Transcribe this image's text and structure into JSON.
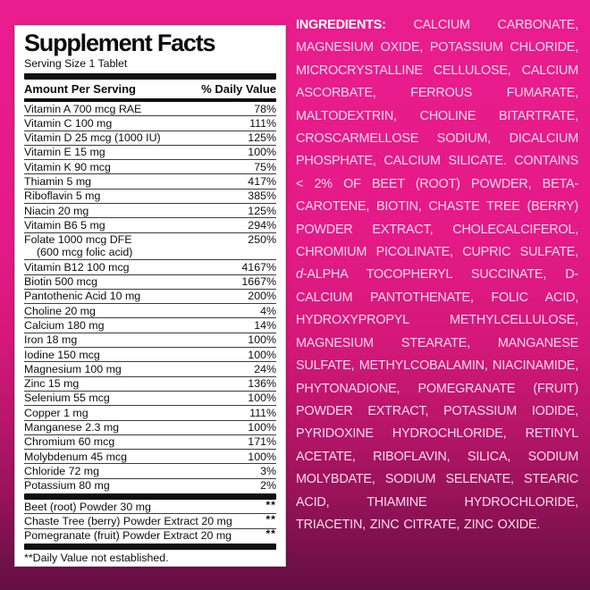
{
  "background": {
    "gradient_top": "#ea1d8e",
    "gradient_bottom": "#660f45"
  },
  "panel": {
    "title": "Supplement Facts",
    "serving_size": "Serving Size 1 Tablet",
    "header": {
      "amount": "Amount Per Serving",
      "daily_value": "% Daily Value"
    },
    "rows": [
      {
        "label": "Vitamin A 700 mcg RAE",
        "value": "78%"
      },
      {
        "label": "Vitamin C 100 mg",
        "value": "111%"
      },
      {
        "label": "Vitamin D 25 mcg (1000 IU)",
        "value": "125%"
      },
      {
        "label": "Vitamin E 15 mg",
        "value": "100%"
      },
      {
        "label": "Vitamin K 90 mcg",
        "value": "75%"
      },
      {
        "label": "Thiamin 5 mg",
        "value": "417%"
      },
      {
        "label": "Riboflavin 5 mg",
        "value": "385%"
      },
      {
        "label": "Niacin 20 mg",
        "value": "125%"
      },
      {
        "label": "Vitamin B6 5 mg",
        "value": "294%"
      },
      {
        "label": "Folate 1000 mcg DFE",
        "label2": "(600 mcg folic acid)",
        "value": "250%"
      },
      {
        "label": "Vitamin B12 100 mcg",
        "value": "4167%"
      },
      {
        "label": "Biotin 500 mcg",
        "value": "1667%"
      },
      {
        "label": "Pantothenic Acid 10 mg",
        "value": "200%"
      },
      {
        "label": "Choline 20 mg",
        "value": "4%"
      },
      {
        "label": "Calcium 180 mg",
        "value": "14%"
      },
      {
        "label": "Iron 18 mg",
        "value": "100%"
      },
      {
        "label": "Iodine 150 mcg",
        "value": "100%"
      },
      {
        "label": "Magnesium 100 mg",
        "value": "24%"
      },
      {
        "label": "Zinc 15 mg",
        "value": "136%"
      },
      {
        "label": "Selenium 55 mcg",
        "value": "100%"
      },
      {
        "label": "Copper 1 mg",
        "value": "111%"
      },
      {
        "label": "Manganese 2.3 mg",
        "value": "100%"
      },
      {
        "label": "Chromium 60 mcg",
        "value": "171%"
      },
      {
        "label": "Molybdenum 45 mcg",
        "value": "100%"
      },
      {
        "label": "Chloride 72 mg",
        "value": "3%"
      },
      {
        "label": "Potassium 80 mg",
        "value": "2%"
      }
    ],
    "botanical_rows": [
      {
        "label": "Beet (root) Powder 30 mg",
        "value": "**"
      },
      {
        "label": "Chaste Tree (berry) Powder Extract 20 mg",
        "value": "**"
      },
      {
        "label": "Pomegranate (fruit) Powder Extract 20 mg",
        "value": "**"
      }
    ],
    "footnote": "**Daily Value not established."
  },
  "ingredients": {
    "segments": [
      {
        "text": "INGREDIENTS:",
        "style": "bold"
      },
      {
        "text": " CALCIUM CARBONATE, MAGNESIUM OXIDE, POTASSIUM CHLORIDE, MICROCRYSTALLINE CELLULOSE, CALCIUM ASCORBATE, FERROUS FUMARATE, MALTODEXTRIN, CHOLINE BITARTRATE, CROSCARMELLOSE SODIUM, DICALCIUM PHOSPHATE, CALCIUM SILICATE. CONTAINS < 2% OF BEET (ROOT) POWDER, BETA-CAROTENE, BIOTIN, CHASTE TREE (BERRY) POWDER EXTRACT, CHOLECALCIFEROL, CHROMIUM PICOLINATE, CUPRIC SULFATE, ",
        "style": "normal"
      },
      {
        "text": "d",
        "style": "italic"
      },
      {
        "text": "-ALPHA TOCOPHERYL SUCCINATE, D-CALCIUM PANTOTHENATE, FOLIC ACID, HYDROXYPROPYL METHYLCELLULOSE, MAGNESIUM STEARATE, MANGANESE SULFATE, METHYLCOBALAMIN, NIACINAMIDE, PHYTONADIONE, POMEGRANATE (FRUIT) POWDER EXTRACT, POTASSIUM IODIDE, PYRIDOXINE HYDROCHLORIDE, RETINYL ACETATE, RIBOFLAVIN, SILICA, SODIUM MOLYBDATE, SODIUM SELENATE, STEARIC ACID, THIAMINE HYDROCHLORIDE, TRIACETIN, ZINC CITRATE, ZINC OXIDE.",
        "style": "normal"
      }
    ]
  }
}
